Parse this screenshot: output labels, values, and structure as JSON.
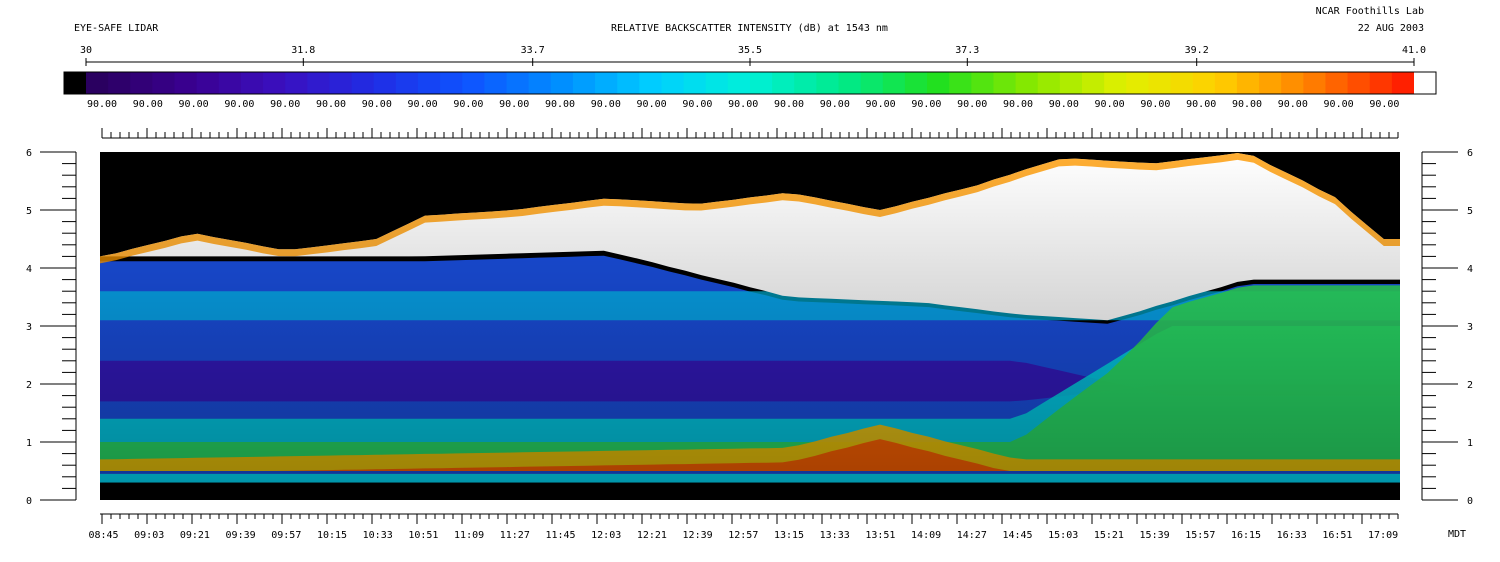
{
  "header": {
    "left_title": "EYE-SAFE LIDAR",
    "center_title": "RELATIVE BACKSCATTER INTENSITY (dB) at 1543 nm",
    "org": "NCAR Foothills Lab",
    "date": "22 AUG 2003"
  },
  "colorbar": {
    "ticks": [
      "30",
      "31.8",
      "33.7",
      "35.5",
      "37.3",
      "39.2",
      "41.0"
    ],
    "tick_values": [
      30,
      31.8,
      33.7,
      35.5,
      37.3,
      39.2,
      41.0
    ],
    "range": [
      30,
      41.0
    ],
    "sublabel": "90.00",
    "sublabel_count": 29,
    "colors": [
      "#000000",
      "#2a0060",
      "#3a0090",
      "#3a10c0",
      "#1f2ee6",
      "#0e55ff",
      "#0090ff",
      "#00d0ff",
      "#00f0d8",
      "#00ea8a",
      "#20e020",
      "#88e800",
      "#e0f000",
      "#ffd000",
      "#ff8000",
      "#ff2000",
      "#ffffff"
    ]
  },
  "axis_unit_label": "MDT",
  "chart_data": {
    "type": "heatmap",
    "title": "RELATIVE BACKSCATTER INTENSITY (dB) at 1543 nm",
    "xlabel": "MDT",
    "ylabel": "",
    "x_tick_labels": [
      "08:45",
      "09:03",
      "09:21",
      "09:39",
      "09:57",
      "10:15",
      "10:33",
      "10:51",
      "11:09",
      "11:27",
      "11:45",
      "12:03",
      "12:21",
      "12:39",
      "12:57",
      "13:15",
      "13:33",
      "13:51",
      "14:09",
      "14:27",
      "14:45",
      "15:03",
      "15:21",
      "15:39",
      "15:57",
      "16:15",
      "16:33",
      "16:51",
      "17:09"
    ],
    "y_ticks": [
      0,
      1,
      2,
      3,
      4,
      5,
      6
    ],
    "ylim": [
      0,
      6
    ],
    "color_range_db": [
      30,
      41.0
    ],
    "features": {
      "cloud_top_height": [
        {
          "time": "08:45",
          "height": 4.2
        },
        {
          "time": "09:21",
          "height": 4.6
        },
        {
          "time": "09:57",
          "height": 4.3
        },
        {
          "time": "10:33",
          "height": 4.5
        },
        {
          "time": "10:51",
          "height": 4.9
        },
        {
          "time": "11:27",
          "height": 5.0
        },
        {
          "time": "12:03",
          "height": 5.2
        },
        {
          "time": "12:39",
          "height": 5.1
        },
        {
          "time": "13:15",
          "height": 5.3
        },
        {
          "time": "13:51",
          "height": 5.0
        },
        {
          "time": "14:27",
          "height": 5.4
        },
        {
          "time": "15:03",
          "height": 5.9
        },
        {
          "time": "15:39",
          "height": 5.8
        },
        {
          "time": "16:15",
          "height": 6.0
        },
        {
          "time": "16:51",
          "height": 5.2
        },
        {
          "time": "17:09",
          "height": 4.5
        }
      ],
      "saturated_cloud_base": [
        {
          "time": "10:51",
          "height": 4.2
        },
        {
          "time": "12:03",
          "height": 4.3
        },
        {
          "time": "13:15",
          "height": 3.5
        },
        {
          "time": "14:09",
          "height": 3.4
        },
        {
          "time": "14:45",
          "height": 3.2
        },
        {
          "time": "15:21",
          "height": 3.1
        },
        {
          "time": "16:15",
          "height": 3.8
        },
        {
          "time": "17:09",
          "height": 3.8
        }
      ],
      "strong_low_layer": [
        {
          "time": "08:45",
          "height": 0.7
        },
        {
          "time": "13:15",
          "height": 0.9
        },
        {
          "time": "13:51",
          "height": 1.3
        },
        {
          "time": "14:45",
          "height": 0.7
        }
      ]
    }
  }
}
